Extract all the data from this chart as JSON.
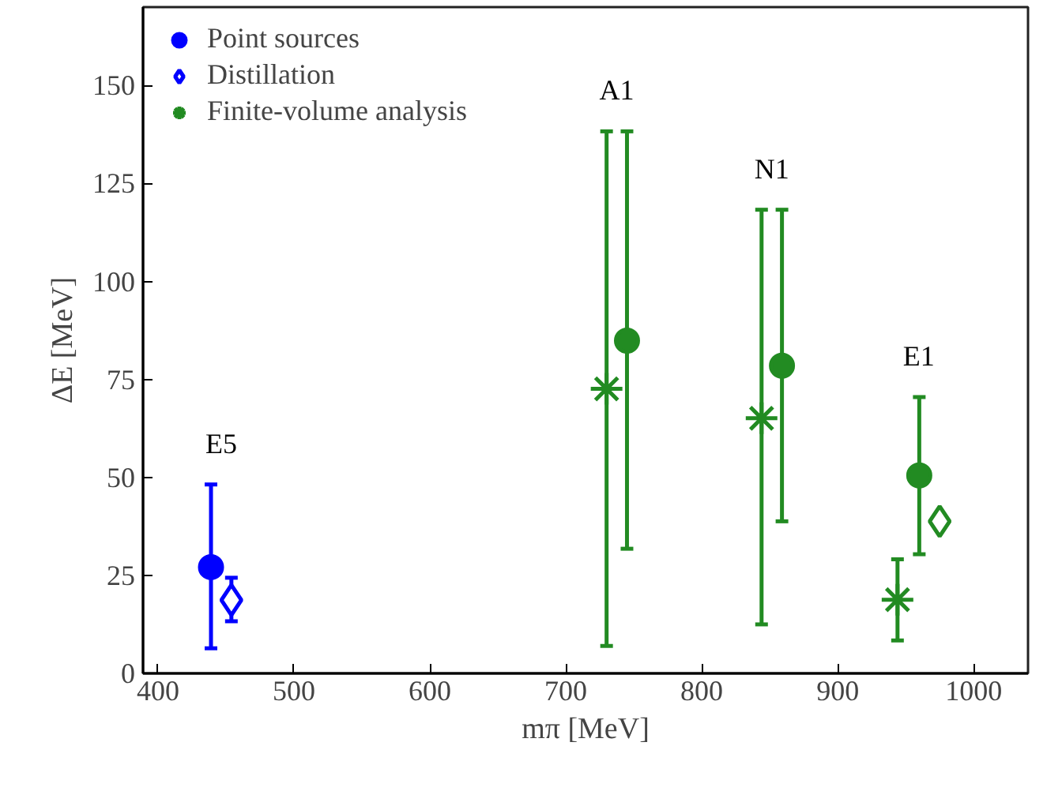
{
  "chart_data": {
    "type": "scatter",
    "xlabel": "mπ [MeV]",
    "ylabel": "ΔE [MeV]",
    "xlim": [
      389,
      1040
    ],
    "ylim": [
      0,
      170
    ],
    "xticks": [
      400,
      500,
      600,
      700,
      800,
      900,
      1000
    ],
    "yticks": [
      0,
      25,
      50,
      75,
      100,
      125,
      150
    ],
    "grid": false,
    "legend": "top left",
    "series": [
      {
        "name": "Point sources",
        "marker": "circle",
        "x": [
          439,
          745,
          859,
          960
        ],
        "values": [
          27.1,
          84.9,
          78.5,
          50.5
        ],
        "colors": [
          "#0000ff",
          "#228b22",
          "#228b22",
          "#228b22"
        ],
        "errors": [
          [
            6.4,
            48.2
          ],
          [
            31.8,
            138.3
          ],
          [
            38.8,
            118.3
          ],
          [
            30.4,
            70.5
          ]
        ]
      },
      {
        "name": "Distillation",
        "marker": "diamond",
        "x": [
          454,
          975
        ],
        "values": [
          18.7,
          38.8
        ],
        "colors": [
          "#0000ff",
          "#228b22"
        ],
        "errors": [
          [
            13.3,
            24.4
          ],
          null
        ]
      },
      {
        "name": "Finite-volume analysis",
        "marker": "cross",
        "x": [
          730,
          844,
          944
        ],
        "values": [
          72.6,
          65.1,
          18.8
        ],
        "colors": [
          "#228b22",
          "#228b22",
          "#228b22"
        ],
        "errors": [
          [
            7.0,
            138.3
          ],
          [
            12.5,
            118.3
          ],
          [
            8.4,
            29.1
          ]
        ]
      }
    ],
    "annotations": [
      "E5",
      "A1",
      "N1",
      "E1"
    ]
  }
}
